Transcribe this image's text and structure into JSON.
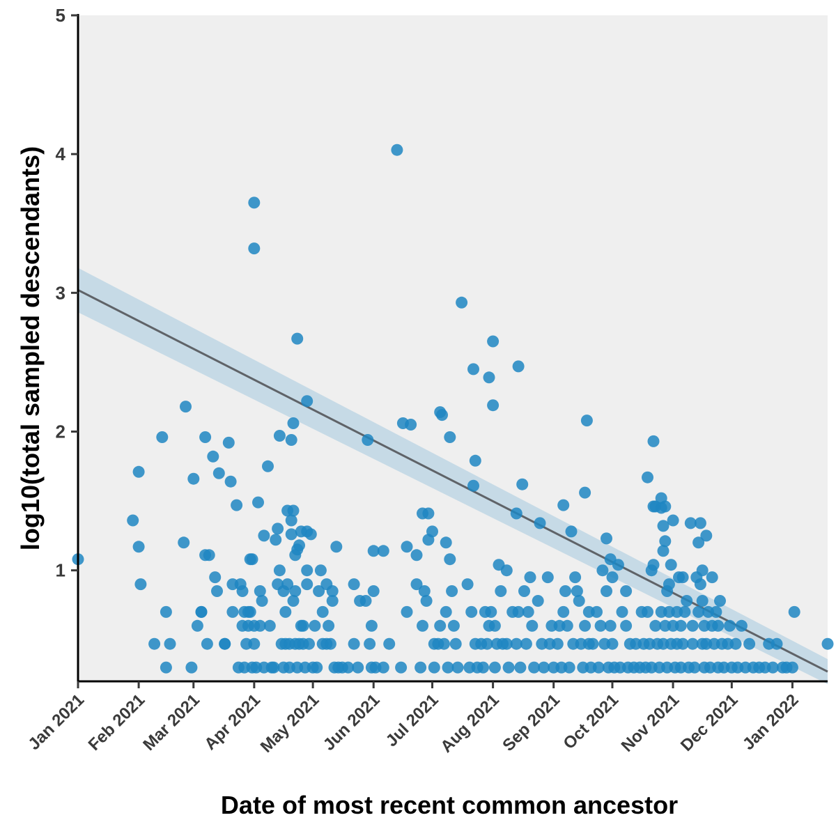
{
  "chart_data": {
    "type": "scatter",
    "xlabel": "Date of most recent common ancestor",
    "ylabel": "log10(total sampled descendants)",
    "xlim": [
      "2021-01-01",
      "2022-01-19"
    ],
    "ylim": [
      0.2,
      5
    ],
    "y_ticks": [
      1,
      2,
      3,
      4,
      5
    ],
    "x_ticks": [
      {
        "date": "2021-01-01",
        "label": "Jan 2021"
      },
      {
        "date": "2021-02-01",
        "label": "Feb 2021"
      },
      {
        "date": "2021-03-01",
        "label": "Mar 2021"
      },
      {
        "date": "2021-04-01",
        "label": "Apr 2021"
      },
      {
        "date": "2021-05-01",
        "label": "May 2021"
      },
      {
        "date": "2021-06-01",
        "label": "Jun 2021"
      },
      {
        "date": "2021-07-01",
        "label": "Jul 2021"
      },
      {
        "date": "2021-08-01",
        "label": "Aug 2021"
      },
      {
        "date": "2021-09-01",
        "label": "Sep 2021"
      },
      {
        "date": "2021-10-01",
        "label": "Oct 2021"
      },
      {
        "date": "2021-11-01",
        "label": "Nov 2021"
      },
      {
        "date": "2021-12-01",
        "label": "Dec 2021"
      },
      {
        "date": "2022-01-01",
        "label": "Jan 2022"
      }
    ],
    "grid": false,
    "background_color": "#efefef",
    "point_color": "#1f86c2",
    "trend_color": "#5f6368",
    "band_color": "#b8d3e3",
    "trend_line": {
      "start": [
        "2021-01-01",
        3.02
      ],
      "end": [
        "2022-01-19",
        0.27
      ]
    },
    "confidence_band": {
      "start": [
        "2021-01-01",
        2.86,
        3.18
      ],
      "end": [
        "2022-01-19",
        0.18,
        0.36
      ]
    },
    "points": [
      [
        "2021-01-01",
        1.08
      ],
      [
        "2021-01-29",
        1.36
      ],
      [
        "2021-02-01",
        1.71
      ],
      [
        "2021-02-01",
        1.17
      ],
      [
        "2021-02-02",
        0.9
      ],
      [
        "2021-02-09",
        0.47
      ],
      [
        "2021-02-13",
        1.96
      ],
      [
        "2021-02-15",
        0.3
      ],
      [
        "2021-02-15",
        0.7
      ],
      [
        "2021-02-17",
        0.47
      ],
      [
        "2021-02-24",
        1.2
      ],
      [
        "2021-02-25",
        2.18
      ],
      [
        "2021-02-28",
        0.3
      ],
      [
        "2021-03-01",
        1.66
      ],
      [
        "2021-03-03",
        0.6
      ],
      [
        "2021-03-05",
        0.7
      ],
      [
        "2021-03-05",
        0.7
      ],
      [
        "2021-03-07",
        1.11
      ],
      [
        "2021-03-07",
        1.96
      ],
      [
        "2021-03-08",
        0.47
      ],
      [
        "2021-03-09",
        1.11
      ],
      [
        "2021-03-11",
        1.82
      ],
      [
        "2021-03-12",
        0.95
      ],
      [
        "2021-03-13",
        0.85
      ],
      [
        "2021-03-14",
        1.7
      ],
      [
        "2021-03-17",
        0.47
      ],
      [
        "2021-03-17",
        0.47
      ],
      [
        "2021-03-19",
        1.92
      ],
      [
        "2021-03-20",
        1.64
      ],
      [
        "2021-03-21",
        0.9
      ],
      [
        "2021-03-21",
        0.7
      ],
      [
        "2021-03-23",
        1.47
      ],
      [
        "2021-03-24",
        0.3
      ],
      [
        "2021-03-25",
        0.9
      ],
      [
        "2021-03-26",
        0.85
      ],
      [
        "2021-03-26",
        0.6
      ],
      [
        "2021-03-27",
        0.7
      ],
      [
        "2021-03-27",
        0.3
      ],
      [
        "2021-03-28",
        0.47
      ],
      [
        "2021-03-29",
        0.7
      ],
      [
        "2021-03-29",
        0.6
      ],
      [
        "2021-03-30",
        1.08
      ],
      [
        "2021-03-30",
        0.7
      ],
      [
        "2021-03-31",
        1.08
      ],
      [
        "2021-03-31",
        0.3
      ],
      [
        "2021-04-01",
        3.65
      ],
      [
        "2021-04-01",
        3.32
      ],
      [
        "2021-04-01",
        0.6
      ],
      [
        "2021-04-01",
        0.47
      ],
      [
        "2021-04-02",
        0.3
      ],
      [
        "2021-04-03",
        1.49
      ],
      [
        "2021-04-04",
        0.85
      ],
      [
        "2021-04-04",
        0.6
      ],
      [
        "2021-04-05",
        0.78
      ],
      [
        "2021-04-06",
        1.25
      ],
      [
        "2021-04-06",
        0.3
      ],
      [
        "2021-04-08",
        1.75
      ],
      [
        "2021-04-09",
        0.6
      ],
      [
        "2021-04-10",
        0.3
      ],
      [
        "2021-04-11",
        0.3
      ],
      [
        "2021-04-12",
        1.22
      ],
      [
        "2021-04-13",
        1.3
      ],
      [
        "2021-04-13",
        0.9
      ],
      [
        "2021-04-14",
        1.97
      ],
      [
        "2021-04-14",
        1.0
      ],
      [
        "2021-04-15",
        0.47
      ],
      [
        "2021-04-16",
        0.85
      ],
      [
        "2021-04-16",
        0.3
      ],
      [
        "2021-04-17",
        0.7
      ],
      [
        "2021-04-17",
        0.47
      ],
      [
        "2021-04-18",
        1.43
      ],
      [
        "2021-04-18",
        0.9
      ],
      [
        "2021-04-19",
        0.47
      ],
      [
        "2021-04-19",
        0.3
      ],
      [
        "2021-04-20",
        1.94
      ],
      [
        "2021-04-20",
        1.36
      ],
      [
        "2021-04-20",
        1.26
      ],
      [
        "2021-04-21",
        2.06
      ],
      [
        "2021-04-21",
        1.43
      ],
      [
        "2021-04-21",
        0.78
      ],
      [
        "2021-04-22",
        1.11
      ],
      [
        "2021-04-22",
        0.85
      ],
      [
        "2021-04-22",
        0.47
      ],
      [
        "2021-04-23",
        2.67
      ],
      [
        "2021-04-23",
        1.15
      ],
      [
        "2021-04-23",
        0.3
      ],
      [
        "2021-04-24",
        1.18
      ],
      [
        "2021-04-24",
        0.47
      ],
      [
        "2021-04-25",
        1.28
      ],
      [
        "2021-04-25",
        0.6
      ],
      [
        "2021-04-26",
        0.6
      ],
      [
        "2021-04-26",
        0.47
      ],
      [
        "2021-04-27",
        0.3
      ],
      [
        "2021-04-28",
        2.22
      ],
      [
        "2021-04-28",
        1.28
      ],
      [
        "2021-04-28",
        1.0
      ],
      [
        "2021-04-28",
        0.9
      ],
      [
        "2021-04-29",
        0.47
      ],
      [
        "2021-04-30",
        1.26
      ],
      [
        "2021-05-01",
        0.3
      ],
      [
        "2021-05-02",
        0.6
      ],
      [
        "2021-05-03",
        0.3
      ],
      [
        "2021-05-04",
        0.85
      ],
      [
        "2021-05-05",
        1.0
      ],
      [
        "2021-05-06",
        0.7
      ],
      [
        "2021-05-06",
        0.47
      ],
      [
        "2021-05-08",
        0.9
      ],
      [
        "2021-05-08",
        0.47
      ],
      [
        "2021-05-09",
        0.6
      ],
      [
        "2021-05-10",
        0.47
      ],
      [
        "2021-05-11",
        0.85
      ],
      [
        "2021-05-11",
        0.78
      ],
      [
        "2021-05-12",
        0.3
      ],
      [
        "2021-05-13",
        1.17
      ],
      [
        "2021-05-14",
        0.3
      ],
      [
        "2021-05-16",
        0.3
      ],
      [
        "2021-05-19",
        0.3
      ],
      [
        "2021-05-22",
        0.47
      ],
      [
        "2021-05-22",
        0.9
      ],
      [
        "2021-05-24",
        0.3
      ],
      [
        "2021-05-25",
        0.78
      ],
      [
        "2021-05-28",
        0.78
      ],
      [
        "2021-05-29",
        1.94
      ],
      [
        "2021-05-30",
        0.47
      ],
      [
        "2021-05-31",
        0.6
      ],
      [
        "2021-05-31",
        0.3
      ],
      [
        "2021-06-01",
        1.14
      ],
      [
        "2021-06-01",
        0.85
      ],
      [
        "2021-06-02",
        0.3
      ],
      [
        "2021-06-06",
        1.14
      ],
      [
        "2021-06-06",
        0.3
      ],
      [
        "2021-06-09",
        0.47
      ],
      [
        "2021-06-13",
        4.03
      ],
      [
        "2021-06-15",
        0.3
      ],
      [
        "2021-06-16",
        2.06
      ],
      [
        "2021-06-18",
        1.17
      ],
      [
        "2021-06-18",
        0.7
      ],
      [
        "2021-06-20",
        2.05
      ],
      [
        "2021-06-23",
        1.11
      ],
      [
        "2021-06-23",
        0.9
      ],
      [
        "2021-06-25",
        0.3
      ],
      [
        "2021-06-26",
        1.41
      ],
      [
        "2021-06-26",
        0.6
      ],
      [
        "2021-06-27",
        0.85
      ],
      [
        "2021-06-28",
        0.78
      ],
      [
        "2021-06-29",
        1.41
      ],
      [
        "2021-06-29",
        1.22
      ],
      [
        "2021-07-01",
        1.28
      ],
      [
        "2021-07-02",
        0.47
      ],
      [
        "2021-07-02",
        0.3
      ],
      [
        "2021-07-04",
        0.47
      ],
      [
        "2021-07-05",
        2.14
      ],
      [
        "2021-07-05",
        0.6
      ],
      [
        "2021-07-06",
        2.12
      ],
      [
        "2021-07-07",
        0.47
      ],
      [
        "2021-07-08",
        1.2
      ],
      [
        "2021-07-08",
        0.7
      ],
      [
        "2021-07-09",
        0.3
      ],
      [
        "2021-07-10",
        1.96
      ],
      [
        "2021-07-10",
        1.08
      ],
      [
        "2021-07-11",
        0.85
      ],
      [
        "2021-07-12",
        0.6
      ],
      [
        "2021-07-13",
        0.47
      ],
      [
        "2021-07-14",
        0.3
      ],
      [
        "2021-07-16",
        2.93
      ],
      [
        "2021-07-19",
        0.9
      ],
      [
        "2021-07-20",
        0.3
      ],
      [
        "2021-07-21",
        0.7
      ],
      [
        "2021-07-22",
        2.45
      ],
      [
        "2021-07-22",
        1.61
      ],
      [
        "2021-07-23",
        1.79
      ],
      [
        "2021-07-23",
        0.47
      ],
      [
        "2021-07-24",
        0.3
      ],
      [
        "2021-07-26",
        0.47
      ],
      [
        "2021-07-27",
        0.3
      ],
      [
        "2021-07-28",
        0.7
      ],
      [
        "2021-07-29",
        0.47
      ],
      [
        "2021-07-30",
        2.39
      ],
      [
        "2021-07-30",
        0.6
      ],
      [
        "2021-07-31",
        0.7
      ],
      [
        "2021-08-01",
        2.65
      ],
      [
        "2021-08-01",
        2.19
      ],
      [
        "2021-08-02",
        0.6
      ],
      [
        "2021-08-02",
        0.3
      ],
      [
        "2021-08-03",
        0.47
      ],
      [
        "2021-08-04",
        1.04
      ],
      [
        "2021-08-05",
        0.85
      ],
      [
        "2021-08-06",
        0.47
      ],
      [
        "2021-08-08",
        1.0
      ],
      [
        "2021-08-08",
        0.47
      ],
      [
        "2021-08-09",
        0.3
      ],
      [
        "2021-08-11",
        0.7
      ],
      [
        "2021-08-13",
        1.41
      ],
      [
        "2021-08-13",
        0.47
      ],
      [
        "2021-08-14",
        2.47
      ],
      [
        "2021-08-14",
        0.7
      ],
      [
        "2021-08-15",
        0.3
      ],
      [
        "2021-08-16",
        1.62
      ],
      [
        "2021-08-17",
        0.85
      ],
      [
        "2021-08-18",
        0.47
      ],
      [
        "2021-08-19",
        0.7
      ],
      [
        "2021-08-20",
        0.95
      ],
      [
        "2021-08-21",
        0.6
      ],
      [
        "2021-08-22",
        0.3
      ],
      [
        "2021-08-24",
        0.78
      ],
      [
        "2021-08-25",
        1.34
      ],
      [
        "2021-08-26",
        0.47
      ],
      [
        "2021-08-27",
        0.3
      ],
      [
        "2021-08-29",
        0.95
      ],
      [
        "2021-08-30",
        0.47
      ],
      [
        "2021-08-31",
        0.6
      ],
      [
        "2021-09-01",
        0.3
      ],
      [
        "2021-09-03",
        0.47
      ],
      [
        "2021-09-04",
        0.6
      ],
      [
        "2021-09-05",
        0.3
      ],
      [
        "2021-09-06",
        1.47
      ],
      [
        "2021-09-06",
        0.7
      ],
      [
        "2021-09-07",
        0.85
      ],
      [
        "2021-09-08",
        0.6
      ],
      [
        "2021-09-09",
        0.3
      ],
      [
        "2021-09-10",
        1.28
      ],
      [
        "2021-09-11",
        0.47
      ],
      [
        "2021-09-12",
        0.95
      ],
      [
        "2021-09-13",
        0.85
      ],
      [
        "2021-09-14",
        0.78
      ],
      [
        "2021-09-15",
        0.47
      ],
      [
        "2021-09-16",
        0.3
      ],
      [
        "2021-09-17",
        1.56
      ],
      [
        "2021-09-17",
        0.6
      ],
      [
        "2021-09-18",
        2.08
      ],
      [
        "2021-09-19",
        0.7
      ],
      [
        "2021-09-19",
        0.47
      ],
      [
        "2021-09-20",
        0.3
      ],
      [
        "2021-09-21",
        0.47
      ],
      [
        "2021-09-23",
        0.7
      ],
      [
        "2021-09-24",
        0.3
      ],
      [
        "2021-09-25",
        0.6
      ],
      [
        "2021-09-26",
        1.0
      ],
      [
        "2021-09-27",
        0.47
      ],
      [
        "2021-09-28",
        1.23
      ],
      [
        "2021-09-28",
        0.85
      ],
      [
        "2021-09-29",
        0.3
      ],
      [
        "2021-09-30",
        1.08
      ],
      [
        "2021-09-30",
        0.6
      ],
      [
        "2021-10-01",
        0.95
      ],
      [
        "2021-10-01",
        0.47
      ],
      [
        "2021-10-02",
        0.3
      ],
      [
        "2021-10-04",
        1.04
      ],
      [
        "2021-10-05",
        0.3
      ],
      [
        "2021-10-06",
        0.7
      ],
      [
        "2021-10-08",
        0.85
      ],
      [
        "2021-10-08",
        0.6
      ],
      [
        "2021-10-09",
        0.3
      ],
      [
        "2021-10-10",
        0.47
      ],
      [
        "2021-10-12",
        0.3
      ],
      [
        "2021-10-13",
        0.47
      ],
      [
        "2021-10-15",
        0.3
      ],
      [
        "2021-10-16",
        0.7
      ],
      [
        "2021-10-17",
        0.47
      ],
      [
        "2021-10-18",
        0.3
      ],
      [
        "2021-10-19",
        1.67
      ],
      [
        "2021-10-19",
        0.7
      ],
      [
        "2021-10-20",
        0.47
      ],
      [
        "2021-10-21",
        1.0
      ],
      [
        "2021-10-21",
        0.3
      ],
      [
        "2021-10-22",
        1.93
      ],
      [
        "2021-10-22",
        1.46
      ],
      [
        "2021-10-22",
        1.04
      ],
      [
        "2021-10-23",
        1.46
      ],
      [
        "2021-10-23",
        0.6
      ],
      [
        "2021-10-24",
        0.47
      ],
      [
        "2021-10-25",
        0.3
      ],
      [
        "2021-10-26",
        1.52
      ],
      [
        "2021-10-26",
        1.45
      ],
      [
        "2021-10-26",
        0.7
      ],
      [
        "2021-10-27",
        1.32
      ],
      [
        "2021-10-27",
        1.14
      ],
      [
        "2021-10-27",
        0.47
      ],
      [
        "2021-10-28",
        1.46
      ],
      [
        "2021-10-28",
        1.21
      ],
      [
        "2021-10-28",
        0.6
      ],
      [
        "2021-10-29",
        0.85
      ],
      [
        "2021-10-29",
        0.3
      ],
      [
        "2021-10-30",
        0.9
      ],
      [
        "2021-10-30",
        0.7
      ],
      [
        "2021-10-31",
        1.04
      ],
      [
        "2021-10-31",
        0.47
      ],
      [
        "2021-11-01",
        1.36
      ],
      [
        "2021-11-01",
        0.6
      ],
      [
        "2021-11-02",
        0.3
      ],
      [
        "2021-11-03",
        0.7
      ],
      [
        "2021-11-03",
        0.47
      ],
      [
        "2021-11-04",
        0.95
      ],
      [
        "2021-11-05",
        0.6
      ],
      [
        "2021-11-05",
        0.3
      ],
      [
        "2021-11-06",
        0.95
      ],
      [
        "2021-11-06",
        0.47
      ],
      [
        "2021-11-07",
        0.7
      ],
      [
        "2021-11-08",
        0.78
      ],
      [
        "2021-11-09",
        0.3
      ],
      [
        "2021-11-10",
        1.34
      ],
      [
        "2021-11-11",
        0.6
      ],
      [
        "2021-11-11",
        0.47
      ],
      [
        "2021-11-12",
        0.3
      ],
      [
        "2021-11-13",
        0.95
      ],
      [
        "2021-11-14",
        1.2
      ],
      [
        "2021-11-14",
        0.7
      ],
      [
        "2021-11-15",
        1.34
      ],
      [
        "2021-11-15",
        0.9
      ],
      [
        "2021-11-16",
        1.0
      ],
      [
        "2021-11-16",
        0.78
      ],
      [
        "2021-11-16",
        0.47
      ],
      [
        "2021-11-17",
        0.6
      ],
      [
        "2021-11-17",
        0.3
      ],
      [
        "2021-11-18",
        1.25
      ],
      [
        "2021-11-18",
        0.47
      ],
      [
        "2021-11-19",
        0.7
      ],
      [
        "2021-11-20",
        0.3
      ],
      [
        "2021-11-21",
        0.95
      ],
      [
        "2021-11-21",
        0.6
      ],
      [
        "2021-11-22",
        0.47
      ],
      [
        "2021-11-23",
        0.7
      ],
      [
        "2021-11-24",
        0.6
      ],
      [
        "2021-11-24",
        0.3
      ],
      [
        "2021-11-25",
        0.78
      ],
      [
        "2021-11-26",
        0.47
      ],
      [
        "2021-11-27",
        0.3
      ],
      [
        "2021-11-29",
        0.47
      ],
      [
        "2021-11-30",
        0.6
      ],
      [
        "2021-12-01",
        0.3
      ],
      [
        "2021-12-03",
        0.47
      ],
      [
        "2021-12-04",
        0.3
      ],
      [
        "2021-12-06",
        0.6
      ],
      [
        "2021-12-08",
        0.3
      ],
      [
        "2021-12-10",
        0.47
      ],
      [
        "2021-12-12",
        0.3
      ],
      [
        "2021-12-15",
        0.3
      ],
      [
        "2021-12-18",
        0.3
      ],
      [
        "2021-12-20",
        0.47
      ],
      [
        "2021-12-22",
        0.3
      ],
      [
        "2021-12-24",
        0.47
      ],
      [
        "2021-12-27",
        0.3
      ],
      [
        "2021-12-29",
        0.3
      ],
      [
        "2022-01-01",
        0.3
      ],
      [
        "2022-01-02",
        0.7
      ],
      [
        "2022-01-19",
        0.47
      ]
    ]
  }
}
